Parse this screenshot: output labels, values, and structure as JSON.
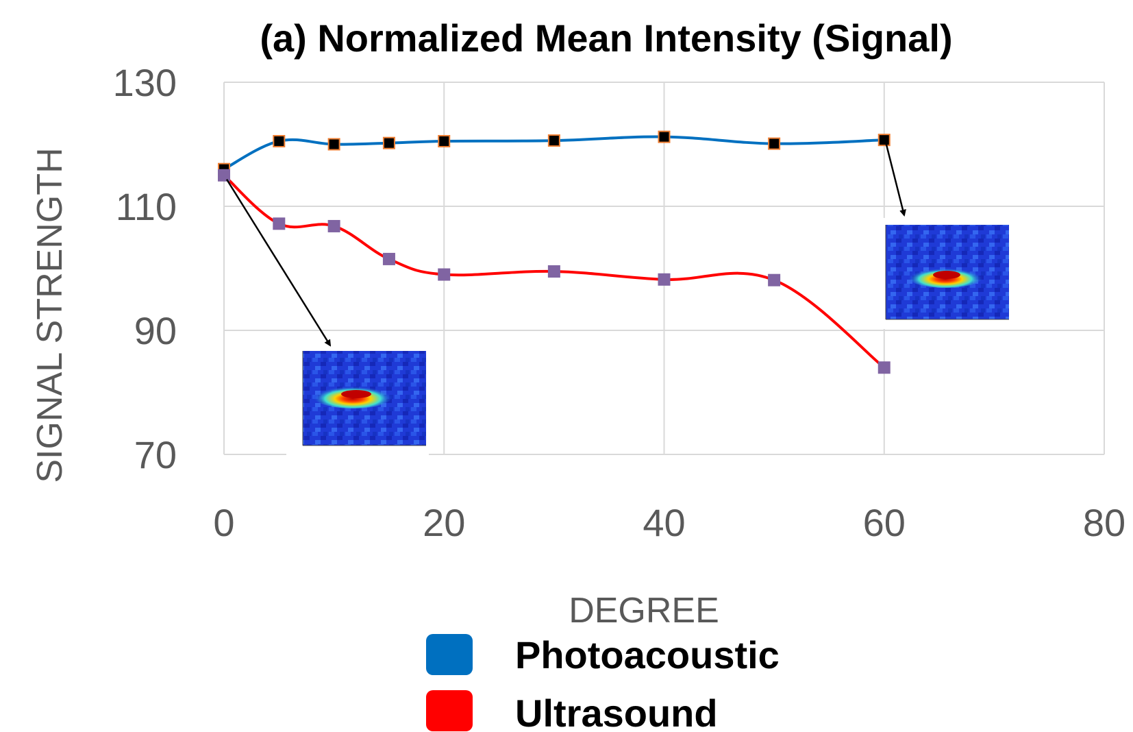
{
  "chart_data": {
    "type": "line",
    "title": "(a) Normalized Mean Intensity (Signal)",
    "xlabel": "DEGREE",
    "ylabel": "SIGNAL STRENGTH",
    "xlim": [
      0,
      80
    ],
    "ylim": [
      70,
      130
    ],
    "x_ticks": [
      "0",
      "20",
      "40",
      "60",
      "80"
    ],
    "y_ticks": [
      "70",
      "90",
      "110",
      "130"
    ],
    "grid": true,
    "legend_position": "bottom",
    "series": [
      {
        "name": "Photoacoustic",
        "color": "#0070C0",
        "marker_color": "#000000",
        "marker_edge": "#ED7D31",
        "points": [
          [
            0,
            116
          ],
          [
            5,
            120.5
          ],
          [
            10,
            120
          ],
          [
            15,
            120.2
          ],
          [
            20,
            120.5
          ],
          [
            30,
            120.6
          ],
          [
            40,
            121.2
          ],
          [
            50,
            120.1
          ],
          [
            60,
            120.7
          ]
        ]
      },
      {
        "name": "Ultrasound",
        "color": "#FF0000",
        "marker_color": "#8064A2",
        "marker_edge": "#8064A2",
        "points": [
          [
            0,
            115
          ],
          [
            5,
            107.2
          ],
          [
            10,
            106.8
          ],
          [
            15,
            101.5
          ],
          [
            20,
            99
          ],
          [
            30,
            99.5
          ],
          [
            40,
            98.2
          ],
          [
            50,
            98.1
          ],
          [
            60,
            84
          ]
        ]
      }
    ],
    "annotations": [
      {
        "type": "arrow-inset",
        "points_to": [
          0,
          115
        ],
        "image": "heatmap-inset"
      },
      {
        "type": "arrow-inset",
        "points_to": [
          60,
          120.7
        ],
        "image": "heatmap-inset"
      }
    ]
  }
}
